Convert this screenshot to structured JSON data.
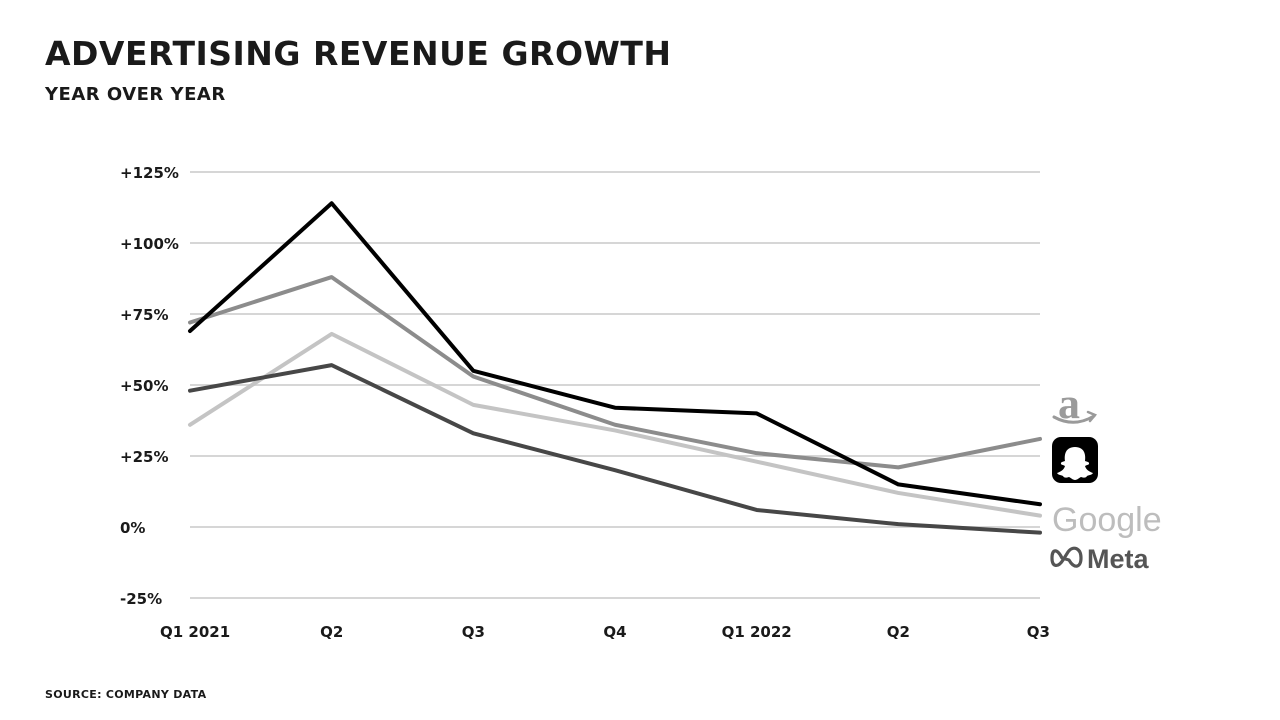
{
  "header": {
    "title": "ADVERTISING REVENUE GROWTH",
    "subtitle": "YEAR OVER YEAR"
  },
  "footer": {
    "source": "SOURCE: COMPANY DATA"
  },
  "logos": {
    "amazon": "a",
    "snapchat": "snapchat-ghost-icon",
    "google": "Google",
    "meta": "Meta"
  },
  "chart_data": {
    "type": "line",
    "title": "ADVERTISING REVENUE GROWTH",
    "subtitle": "YEAR OVER YEAR",
    "categories": [
      "Q1 2021",
      "Q2",
      "Q3",
      "Q4",
      "Q1 2022",
      "Q2",
      "Q3"
    ],
    "ylim": [
      -25,
      125
    ],
    "yticks": [
      -25,
      0,
      25,
      50,
      75,
      100,
      125
    ],
    "ytick_labels": [
      "-25%",
      "0%",
      "+25%",
      "+50%",
      "+75%",
      "+100%",
      "+125%"
    ],
    "grid": true,
    "legend": "logos at right end of lines",
    "series": [
      {
        "name": "Snapchat",
        "color": "#000000",
        "values": [
          69,
          114,
          55,
          42,
          40,
          15,
          8
        ]
      },
      {
        "name": "Amazon",
        "color": "#8c8c8c",
        "values": [
          72,
          88,
          53,
          36,
          26,
          21,
          31
        ]
      },
      {
        "name": "Google",
        "color": "#c4c4c4",
        "values": [
          36,
          68,
          43,
          34,
          23,
          12,
          4
        ]
      },
      {
        "name": "Meta",
        "color": "#474747",
        "values": [
          48,
          57,
          33,
          20,
          6,
          1,
          -2
        ]
      }
    ],
    "source": "SOURCE: COMPANY DATA"
  }
}
